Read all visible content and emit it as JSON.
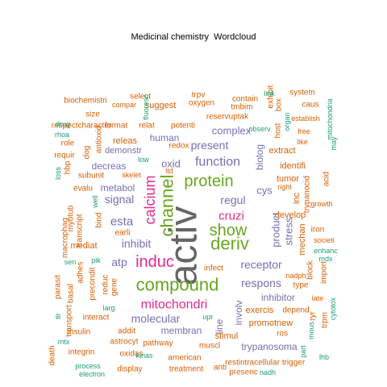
{
  "title": "Medicinal chemistry  Wordcloud",
  "palette": {
    "orange": "#d95f02",
    "teal": "#1b9e77",
    "purple": "#7570b3",
    "magenta": "#e7298a",
    "green": "#66a61e",
    "gray": "#666666"
  },
  "words": [
    {
      "t": "activ",
      "c": "gray"
    },
    {
      "t": "compound",
      "c": "green"
    },
    {
      "t": "induc",
      "c": "magenta"
    },
    {
      "t": "channel",
      "c": "green"
    },
    {
      "t": "protein",
      "c": "green"
    },
    {
      "t": "calcium",
      "c": "magenta"
    },
    {
      "t": "deriv",
      "c": "green"
    },
    {
      "t": "show",
      "c": "green"
    },
    {
      "t": "mitochondri",
      "c": "magenta"
    },
    {
      "t": "function",
      "c": "purple"
    },
    {
      "t": "receptor",
      "c": "purple"
    },
    {
      "t": "respons",
      "c": "purple"
    },
    {
      "t": "cruzi",
      "c": "magenta"
    },
    {
      "t": "regul",
      "c": "purple"
    },
    {
      "t": "esta",
      "c": "purple"
    },
    {
      "t": "signal",
      "c": "purple"
    },
    {
      "t": "present",
      "c": "purple"
    },
    {
      "t": "molecular",
      "c": "purple"
    },
    {
      "t": "inhibit",
      "c": "purple"
    },
    {
      "t": "stress",
      "c": "purple"
    },
    {
      "t": "product",
      "c": "purple"
    },
    {
      "t": "biolog",
      "c": "purple"
    },
    {
      "t": "atp",
      "c": "purple"
    },
    {
      "t": "oxid",
      "c": "purple"
    },
    {
      "t": "cys",
      "c": "purple"
    },
    {
      "t": "complex",
      "c": "purple"
    },
    {
      "t": "human",
      "c": "purple"
    },
    {
      "t": "inhibitor",
      "c": "purple"
    },
    {
      "t": "trypanosoma",
      "c": "purple"
    },
    {
      "t": "membran",
      "c": "purple"
    },
    {
      "t": "involv",
      "c": "purple"
    },
    {
      "t": "line",
      "c": "purple"
    },
    {
      "t": "metabol",
      "c": "purple"
    },
    {
      "t": "decreas",
      "c": "purple"
    },
    {
      "t": "demonstr",
      "c": "purple"
    },
    {
      "t": "mediat",
      "c": "orange"
    },
    {
      "t": "stimul",
      "c": "orange"
    },
    {
      "t": "exercis",
      "c": "orange"
    },
    {
      "t": "promotnew",
      "c": "orange"
    },
    {
      "t": "inc",
      "c": "orange"
    },
    {
      "t": "mechan",
      "c": "orange"
    },
    {
      "t": "releas",
      "c": "orange"
    },
    {
      "t": "tumor",
      "c": "orange"
    },
    {
      "t": "extract",
      "c": "orange"
    },
    {
      "t": "identifi",
      "c": "orange"
    },
    {
      "t": "develop",
      "c": "orange"
    },
    {
      "t": "suggest",
      "c": "orange"
    },
    {
      "t": "potenti",
      "c": "orange"
    },
    {
      "t": "oxygen",
      "c": "orange"
    },
    {
      "t": "reservuptak",
      "c": "orange"
    },
    {
      "t": "type",
      "c": "orange"
    },
    {
      "t": "pathway",
      "c": "orange"
    },
    {
      "t": "muscl",
      "c": "orange"
    },
    {
      "t": "insulin",
      "c": "orange"
    },
    {
      "t": "addit",
      "c": "orange"
    },
    {
      "t": "interact",
      "c": "orange"
    },
    {
      "t": "subunit",
      "c": "orange"
    },
    {
      "t": "evalu",
      "c": "orange"
    },
    {
      "t": "macrophag",
      "c": "orange"
    },
    {
      "t": "transcript",
      "c": "orange"
    },
    {
      "t": "myotub",
      "c": "orange"
    },
    {
      "t": "bind",
      "c": "orange"
    },
    {
      "t": "reduc",
      "c": "orange"
    },
    {
      "t": "gene",
      "c": "orange"
    },
    {
      "t": "precondit",
      "c": "orange"
    },
    {
      "t": "adhes",
      "c": "orange"
    },
    {
      "t": "basal",
      "c": "orange"
    },
    {
      "t": "transport",
      "c": "orange"
    },
    {
      "t": "parasit",
      "c": "orange"
    },
    {
      "t": "death",
      "c": "orange"
    },
    {
      "t": "integrin",
      "c": "orange"
    },
    {
      "t": "astrocyt",
      "c": "orange"
    },
    {
      "t": "oxidas",
      "c": "orange"
    },
    {
      "t": "display",
      "c": "orange"
    },
    {
      "t": "treatment",
      "c": "orange"
    },
    {
      "t": "american",
      "c": "orange"
    },
    {
      "t": "restintracellular",
      "c": "orange"
    },
    {
      "t": "trigger",
      "c": "orange"
    },
    {
      "t": "presenc",
      "c": "orange"
    },
    {
      "t": "anti",
      "c": "orange"
    },
    {
      "t": "ros",
      "c": "orange"
    },
    {
      "t": "depend",
      "c": "orange"
    },
    {
      "t": "ryr",
      "c": "orange"
    },
    {
      "t": "trpm",
      "c": "orange"
    },
    {
      "t": "nadph",
      "c": "orange"
    },
    {
      "t": "late",
      "c": "orange"
    },
    {
      "t": "block",
      "c": "orange"
    },
    {
      "t": "import",
      "c": "orange"
    },
    {
      "t": "societi",
      "c": "orange"
    },
    {
      "t": "iron",
      "c": "orange"
    },
    {
      "t": "growth",
      "c": "orange"
    },
    {
      "t": "acid",
      "c": "orange"
    },
    {
      "t": "trypanocid",
      "c": "orange"
    },
    {
      "t": "right",
      "c": "orange"
    },
    {
      "t": "free",
      "c": "orange"
    },
    {
      "t": "like",
      "c": "orange"
    },
    {
      "t": "establish",
      "c": "orange"
    },
    {
      "t": "caus",
      "c": "orange"
    },
    {
      "t": "system",
      "c": "orange"
    },
    {
      "t": "tmbim",
      "c": "orange"
    },
    {
      "t": "contain",
      "c": "orange"
    },
    {
      "t": "exhibit",
      "c": "orange"
    },
    {
      "t": "box",
      "c": "orange"
    },
    {
      "t": "host",
      "c": "orange"
    },
    {
      "t": "trpv",
      "c": "orange"
    },
    {
      "t": "select",
      "c": "orange"
    },
    {
      "t": "biochemistri",
      "c": "orange"
    },
    {
      "t": "compar",
      "c": "orange"
    },
    {
      "t": "size",
      "c": "orange"
    },
    {
      "t": "respectcharacter",
      "c": "orange"
    },
    {
      "t": "format",
      "c": "orange"
    },
    {
      "t": "relat",
      "c": "orange"
    },
    {
      "t": "redox",
      "c": "orange"
    },
    {
      "t": "role",
      "c": "orange"
    },
    {
      "t": "requir",
      "c": "orange"
    },
    {
      "t": "hbp",
      "c": "orange"
    },
    {
      "t": "dog",
      "c": "orange"
    },
    {
      "t": "antioxid",
      "c": "orange"
    },
    {
      "t": "skelet",
      "c": "orange"
    },
    {
      "t": "earli",
      "c": "orange"
    },
    {
      "t": "infect",
      "c": "orange"
    },
    {
      "t": "ltd",
      "c": "orange"
    },
    {
      "t": "fluoresc",
      "c": "teal"
    },
    {
      "t": "rhoa",
      "c": "teal"
    },
    {
      "t": "drug",
      "c": "teal"
    },
    {
      "t": "loss",
      "c": "teal"
    },
    {
      "t": "low",
      "c": "teal"
    },
    {
      "t": "well",
      "c": "teal"
    },
    {
      "t": "sen",
      "c": "teal"
    },
    {
      "t": "pik",
      "c": "teal"
    },
    {
      "t": "tlr",
      "c": "teal"
    },
    {
      "t": "larg",
      "c": "teal"
    },
    {
      "t": "mtx",
      "c": "teal"
    },
    {
      "t": "process",
      "c": "teal"
    },
    {
      "t": "electron",
      "c": "teal"
    },
    {
      "t": "kinas",
      "c": "teal"
    },
    {
      "t": "upr",
      "c": "teal"
    },
    {
      "t": "nadh",
      "c": "teal"
    },
    {
      "t": "part",
      "c": "teal"
    },
    {
      "t": "lhb",
      "c": "teal"
    },
    {
      "t": "mous",
      "c": "teal"
    },
    {
      "t": "cytotox",
      "c": "teal"
    },
    {
      "t": "mdx",
      "c": "teal"
    },
    {
      "t": "enhanc",
      "c": "teal"
    },
    {
      "t": "may",
      "c": "teal"
    },
    {
      "t": "mitochondria",
      "c": "teal"
    },
    {
      "t": "organ",
      "c": "teal"
    },
    {
      "t": "observ",
      "c": "teal"
    },
    {
      "t": "link",
      "c": "teal"
    },
    {
      "t": "rat",
      "c": "teal"
    }
  ]
}
